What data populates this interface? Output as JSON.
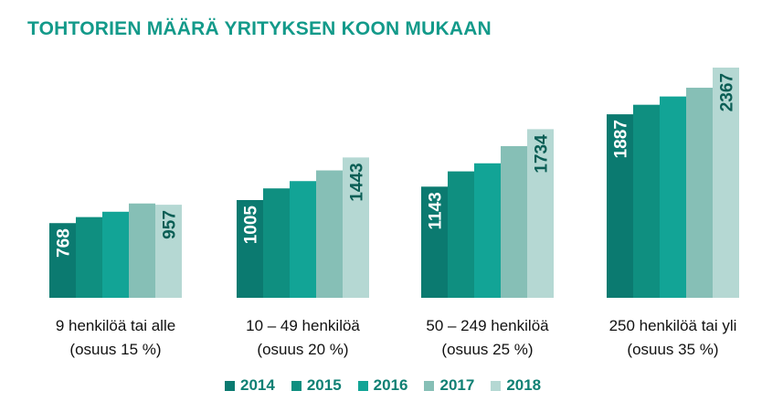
{
  "chart_data": {
    "type": "bar",
    "title": "TOHTORIEN MÄÄRÄ YRITYKSEN KOON MUKAAN",
    "categories": [
      {
        "line1": "9 henkilöä tai alle",
        "line2": "(osuus 15  %)"
      },
      {
        "line1": "10 – 49 henkilöä",
        "line2": "(osuus 20 %)"
      },
      {
        "line1": "50 – 249 henkilöä",
        "line2": "(osuus 25 %)"
      },
      {
        "line1": "250 henkilöä tai yli",
        "line2": "(osuus 35 %)"
      }
    ],
    "series": [
      {
        "name": "2014",
        "color": "#0b7a70",
        "values": [
          768,
          1005,
          1143,
          1887
        ],
        "labeled": true
      },
      {
        "name": "2015",
        "color": "#0f8f80",
        "values": [
          830,
          1125,
          1300,
          1985
        ],
        "labeled": false
      },
      {
        "name": "2016",
        "color": "#12a496",
        "values": [
          885,
          1200,
          1383,
          2070
        ],
        "labeled": false
      },
      {
        "name": "2017",
        "color": "#86bfb6",
        "values": [
          970,
          1310,
          1560,
          2160
        ],
        "labeled": false
      },
      {
        "name": "2018",
        "color": "#b5d8d3",
        "values": [
          957,
          1443,
          1734,
          2367
        ],
        "labeled": true
      }
    ],
    "data_labels": [
      {
        "series": "2014",
        "texts": [
          "768",
          "1005",
          "1143",
          "1887"
        ],
        "color": "#ffffff"
      },
      {
        "series": "2018",
        "texts": [
          "957",
          "1443",
          "1734",
          "2367"
        ],
        "color": "#0b5e55"
      }
    ],
    "ylim": [
      0,
      2367
    ],
    "xlabel": "",
    "ylabel": "",
    "grid": false,
    "legend_position": "bottom"
  }
}
